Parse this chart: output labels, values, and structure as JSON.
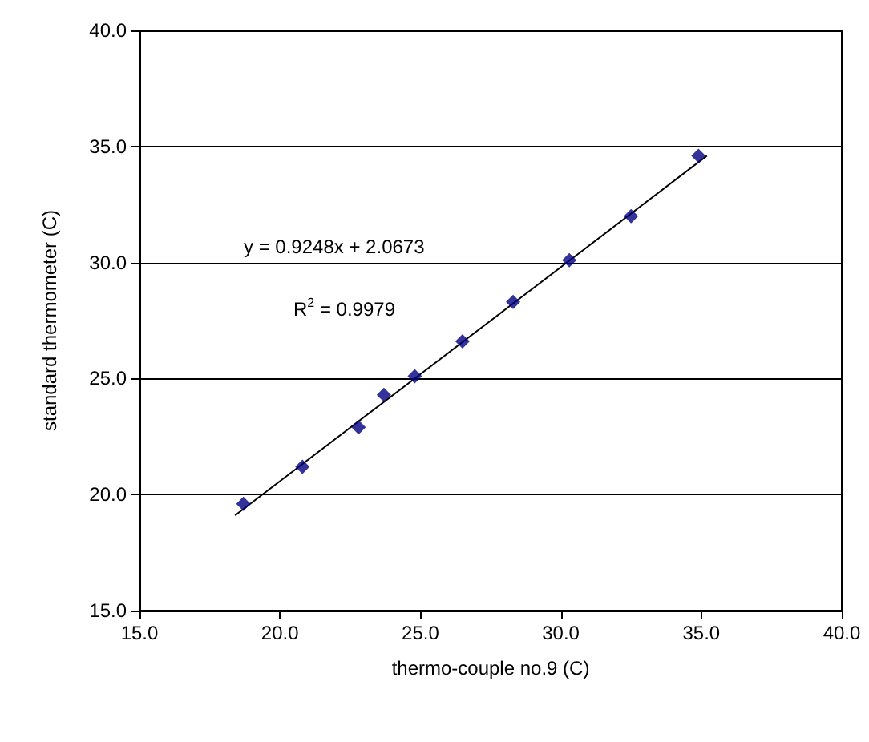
{
  "chart_data": {
    "type": "scatter",
    "xlabel": "thermo-couple no.9 (C)",
    "ylabel": "standard thermometer (C)",
    "xlim": [
      15,
      40
    ],
    "xticks": [
      {
        "value": 15,
        "label": "15.0"
      },
      {
        "value": 20,
        "label": "20.0"
      },
      {
        "value": 25,
        "label": "25.0"
      },
      {
        "value": 30,
        "label": "30.0"
      },
      {
        "value": 35,
        "label": "35.0"
      },
      {
        "value": 40,
        "label": "40.0"
      }
    ],
    "ylim": [
      15,
      40
    ],
    "yticks": [
      {
        "value": 15,
        "label": "15.0"
      },
      {
        "value": 20,
        "label": "20.0"
      },
      {
        "value": 25,
        "label": "25.0"
      },
      {
        "value": 30,
        "label": "30.0"
      },
      {
        "value": 35,
        "label": "35.0"
      },
      {
        "value": 40,
        "label": "40.0"
      }
    ],
    "grid": "y",
    "series": [
      {
        "marker": "diamond",
        "color": "#000080",
        "x": [
          18.7,
          20.8,
          22.8,
          23.7,
          24.8,
          26.5,
          28.3,
          30.3,
          32.5,
          34.9
        ],
        "values": [
          19.6,
          21.2,
          22.9,
          24.3,
          25.1,
          26.6,
          28.3,
          30.1,
          32.0,
          34.6
        ]
      },
      {
        "type": "line",
        "marker": "none",
        "color": "#000000",
        "x": [
          18.4,
          35.2
        ],
        "values": [
          19.1,
          34.6
        ]
      }
    ],
    "annotations": [
      "y = 0.9248x + 2.0673",
      "R$^{2}$ = 0.9979"
    ]
  }
}
